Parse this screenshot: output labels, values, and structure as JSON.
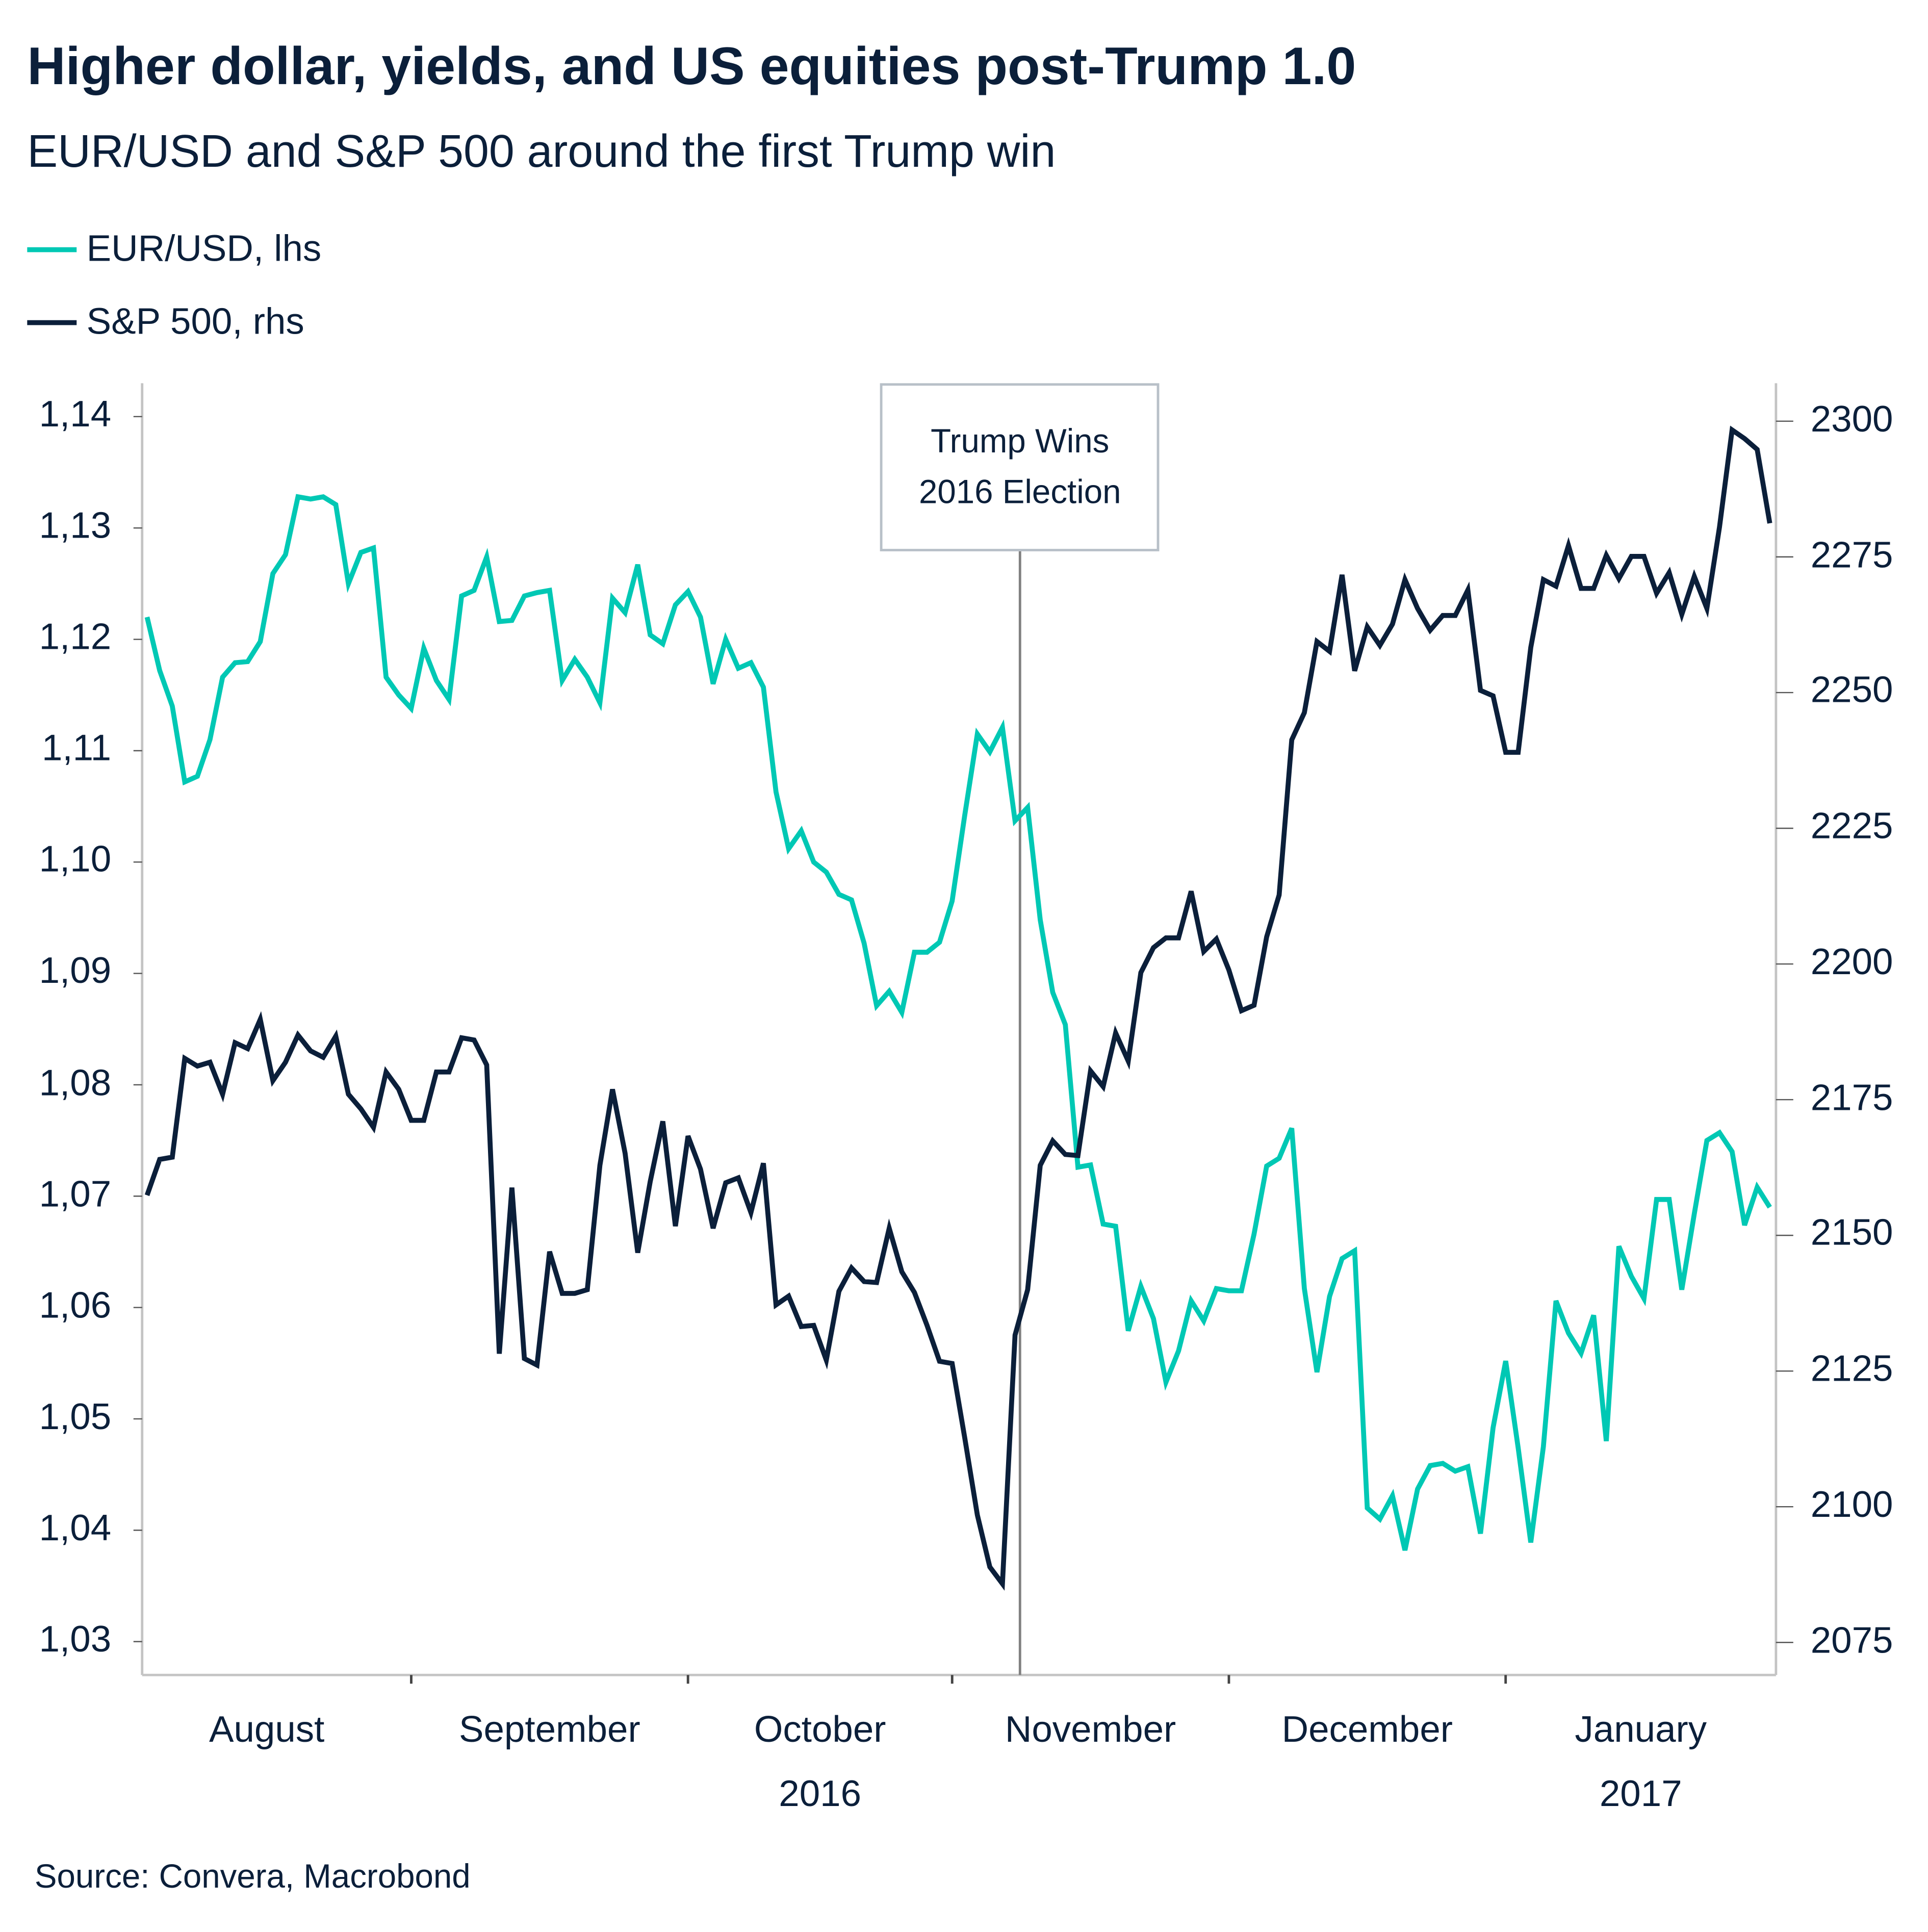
{
  "title": "Higher dollar, yields, and US equities post-Trump 1.0",
  "subtitle": "EUR/USD and S&P 500 around the first Trump win",
  "source": "Source: Convera, Macrobond",
  "colors": {
    "eurusd": "#00c8b4",
    "spx": "#0b1f3a",
    "axis": "#c4c4c4",
    "event_line": "#808080"
  },
  "chart_data": {
    "type": "line",
    "title": "Higher dollar, yields, and US equities post-Trump 1.0",
    "subtitle": "EUR/USD and S&P 500 around the first Trump win",
    "legend": {
      "placement": "top-left",
      "entries": [
        "EUR/USD, lhs",
        "S&P 500, rhs"
      ]
    },
    "grid": false,
    "y_left": {
      "range": [
        1.027,
        1.143
      ],
      "ticks": [
        "1,14",
        "1,13",
        "1,12",
        "1,11",
        "1,10",
        "1,09",
        "1,08",
        "1,07",
        "1,06",
        "1,05",
        "1,04",
        "1,03"
      ],
      "tick_values": [
        1.14,
        1.13,
        1.12,
        1.11,
        1.1,
        1.09,
        1.08,
        1.07,
        1.06,
        1.05,
        1.04,
        1.03
      ]
    },
    "y_right": {
      "range": [
        2069,
        2307
      ],
      "ticks": [
        "2300",
        "2275",
        "2250",
        "2225",
        "2200",
        "2175",
        "2150",
        "2125",
        "2100",
        "2075"
      ],
      "tick_values": [
        2300,
        2275,
        2250,
        2225,
        2200,
        2175,
        2150,
        2125,
        2100,
        2075
      ]
    },
    "x_months": [
      "August",
      "September",
      "October",
      "November",
      "December",
      "January"
    ],
    "x_years": [
      {
        "label": "2016",
        "under": "October"
      },
      {
        "label": "2017",
        "under": "January"
      }
    ],
    "annotation": {
      "date": "2016-11-08",
      "lines": [
        "Trump Wins",
        "2016 Election"
      ]
    },
    "dates": [
      "2016-08-03",
      "2016-08-04",
      "2016-08-05",
      "2016-08-08",
      "2016-08-09",
      "2016-08-10",
      "2016-08-11",
      "2016-08-12",
      "2016-08-15",
      "2016-08-16",
      "2016-08-17",
      "2016-08-18",
      "2016-08-19",
      "2016-08-22",
      "2016-08-23",
      "2016-08-24",
      "2016-08-25",
      "2016-08-26",
      "2016-08-29",
      "2016-08-30",
      "2016-08-31",
      "2016-09-01",
      "2016-09-02",
      "2016-09-05",
      "2016-09-06",
      "2016-09-07",
      "2016-09-08",
      "2016-09-09",
      "2016-09-12",
      "2016-09-13",
      "2016-09-14",
      "2016-09-15",
      "2016-09-16",
      "2016-09-19",
      "2016-09-20",
      "2016-09-21",
      "2016-09-22",
      "2016-09-23",
      "2016-09-26",
      "2016-09-27",
      "2016-09-28",
      "2016-09-29",
      "2016-09-30",
      "2016-10-03",
      "2016-10-04",
      "2016-10-05",
      "2016-10-06",
      "2016-10-07",
      "2016-10-10",
      "2016-10-11",
      "2016-10-12",
      "2016-10-13",
      "2016-10-14",
      "2016-10-17",
      "2016-10-18",
      "2016-10-19",
      "2016-10-20",
      "2016-10-21",
      "2016-10-24",
      "2016-10-25",
      "2016-10-26",
      "2016-10-27",
      "2016-10-28",
      "2016-10-31",
      "2016-11-01",
      "2016-11-02",
      "2016-11-03",
      "2016-11-04",
      "2016-11-07",
      "2016-11-08",
      "2016-11-09",
      "2016-11-10",
      "2016-11-11",
      "2016-11-14",
      "2016-11-15",
      "2016-11-16",
      "2016-11-17",
      "2016-11-18",
      "2016-11-21",
      "2016-11-22",
      "2016-11-23",
      "2016-11-24",
      "2016-11-25",
      "2016-11-28",
      "2016-11-29",
      "2016-11-30",
      "2016-12-01",
      "2016-12-02",
      "2016-12-05",
      "2016-12-06",
      "2016-12-07",
      "2016-12-08",
      "2016-12-09",
      "2016-12-12",
      "2016-12-13",
      "2016-12-14",
      "2016-12-15",
      "2016-12-16",
      "2016-12-19",
      "2016-12-20",
      "2016-12-21",
      "2016-12-22",
      "2016-12-23",
      "2016-12-26",
      "2016-12-27",
      "2016-12-28",
      "2016-12-29",
      "2016-12-30",
      "2017-01-02",
      "2017-01-03",
      "2017-01-04",
      "2017-01-05",
      "2017-01-06",
      "2017-01-09",
      "2017-01-10",
      "2017-01-11",
      "2017-01-12",
      "2017-01-13",
      "2017-01-16",
      "2017-01-17",
      "2017-01-18",
      "2017-01-19",
      "2017-01-20",
      "2017-01-23",
      "2017-01-24",
      "2017-01-25",
      "2017-01-26",
      "2017-01-27",
      "2017-01-30",
      "2017-01-31"
    ],
    "series": [
      {
        "name": "EUR/USD, lhs",
        "axis": "left",
        "values": [
          1.122,
          1.1172,
          1.114,
          1.1072,
          1.1077,
          1.111,
          1.1166,
          1.1179,
          1.118,
          1.1198,
          1.1259,
          1.1276,
          1.1328,
          1.1326,
          1.1328,
          1.1321,
          1.125,
          1.1278,
          1.1282,
          1.1166,
          1.115,
          1.1138,
          1.1192,
          1.1163,
          1.1146,
          1.1239,
          1.1244,
          1.1274,
          1.1216,
          1.1217,
          1.1239,
          1.1242,
          1.1244,
          1.1163,
          1.1182,
          1.1166,
          1.1143,
          1.1237,
          1.1224,
          1.1267,
          1.1204,
          1.1196,
          1.1231,
          1.1243,
          1.122,
          1.116,
          1.12,
          1.1174,
          1.1179,
          1.1157,
          1.1063,
          1.1012,
          1.1028,
          1.1,
          1.0991,
          1.0971,
          1.0966,
          1.0927,
          1.0871,
          1.0884,
          1.0865,
          1.0919,
          1.0919,
          1.0928,
          1.0965,
          1.1042,
          1.1115,
          1.1099,
          1.1121,
          1.1037,
          1.1049,
          1.0948,
          1.0883,
          1.0854,
          1.0726,
          1.0728,
          1.0675,
          1.0673,
          1.0579,
          1.0619,
          1.059,
          1.0533,
          1.0561,
          1.0606,
          1.0588,
          1.0617,
          1.0615,
          1.0615,
          1.0666,
          1.0727,
          1.0734,
          1.0761,
          1.0617,
          1.0542,
          1.061,
          1.0644,
          1.0651,
          1.042,
          1.041,
          1.0431,
          1.0382,
          1.0437,
          1.0458,
          1.046,
          1.0453,
          1.0457,
          1.0397,
          1.0492,
          1.0552,
          1.0474,
          1.0389,
          1.0475,
          1.0606,
          1.0577,
          1.0559,
          1.0593,
          1.048,
          1.0655,
          1.0628,
          1.0608,
          1.0697,
          1.0697,
          1.0616,
          1.0684,
          1.075,
          1.0757,
          1.074,
          1.0674,
          1.0708,
          1.069
        ]
      },
      {
        "name": "S&P 500, rhs",
        "axis": "right",
        "values": [
          2157.4,
          2164,
          2164.4,
          2182.6,
          2181.2,
          2181.9,
          2176,
          2185.5,
          2184.4,
          2189.8,
          2178.5,
          2181.9,
          2186.9,
          2184,
          2182.8,
          2186.7,
          2176,
          2173.3,
          2169.9,
          2180.1,
          2176.9,
          2171.2,
          2171.2,
          2180.1,
          2180.1,
          2186.4,
          2186,
          2181.4,
          2128.2,
          2158.8,
          2127.3,
          2126.1,
          2147,
          2139.3,
          2139.3,
          2140,
          2162.9,
          2176.9,
          2165.1,
          2146.8,
          2159.9,
          2171,
          2151.7,
          2168.3,
          2162.2,
          2151.3,
          2159.7,
          2160.6,
          2154.2,
          2163.3,
          2137.2,
          2138.8,
          2133.2,
          2133.4,
          2127,
          2139.7,
          2144,
          2141.5,
          2141.3,
          2151.3,
          2143.3,
          2139.5,
          2133.4,
          2126.8,
          2126.4,
          2112.7,
          2098.5,
          2088.9,
          2085.8,
          2131.6,
          2140,
          2162.9,
          2167.4,
          2164.9,
          2164.7,
          2180.3,
          2177.4,
          2187.3,
          2182.1,
          2198.4,
          2203,
          2204.8,
          2204.8,
          2213.4,
          2202.3,
          2204.6,
          2198.9,
          2191.4,
          2192.4,
          2205,
          2212.7,
          2241.3,
          2246.3,
          2259.4,
          2257.6,
          2271.7,
          2254,
          2262.1,
          2258.7,
          2262.6,
          2270.8,
          2265.5,
          2261.5,
          2264.2,
          2264.2,
          2268.9,
          2250.4,
          2249.4,
          2239,
          2239,
          2258.3,
          2270.8,
          2269.6,
          2277.1,
          2269.2,
          2269.2,
          2275.3,
          2271,
          2275.1,
          2275.1,
          2268.3,
          2272.1,
          2264.4,
          2271.4,
          2265.5,
          2280.5,
          2298.4,
          2296.8,
          2294.8,
          2281.2
        ]
      }
    ]
  }
}
